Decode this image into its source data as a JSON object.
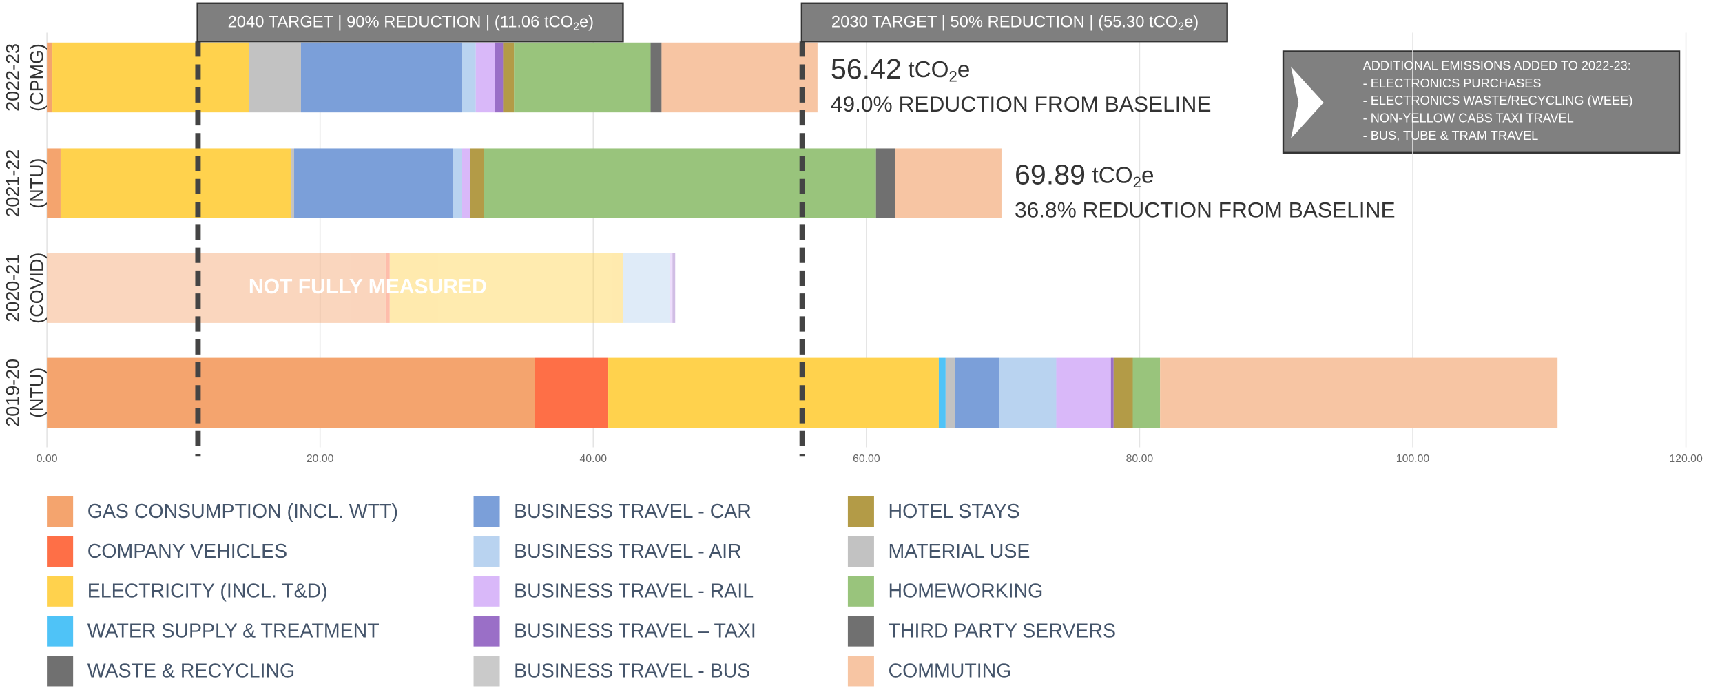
{
  "chart_data": {
    "type": "stacked_barh",
    "categories": [
      [
        "2022-23",
        "(CPMG)"
      ],
      [
        "2021-22",
        "(NTU)"
      ],
      [
        "2020-21",
        "(COVID)"
      ],
      [
        "2019-20",
        "(NTU)"
      ]
    ],
    "series": [
      {
        "name": "GAS CONSUMPTION (INCL. WTT)",
        "color": "#f4a46e",
        "values": [
          0.4,
          1.0,
          24.8,
          35.7
        ]
      },
      {
        "name": "COMPANY VEHICLES",
        "color": "#fe6f47",
        "values": [
          0,
          0,
          0.3,
          5.4
        ]
      },
      {
        "name": "ELECTRICITY (INCL. T&D)",
        "color": "#ffd24d",
        "values": [
          14.4,
          16.9,
          17.1,
          24.2
        ]
      },
      {
        "name": "WATER SUPPLY & TREATMENT",
        "color": "#4fc3f7",
        "values": [
          0,
          0,
          0,
          0.5
        ]
      },
      {
        "name": "WASTE & RECYCLING",
        "color": "#707070",
        "values": [
          0,
          0,
          0,
          0
        ]
      },
      {
        "name": "BUSINESS TRAVEL - CAR",
        "color": "#7b9fd9",
        "values": [
          11.8,
          11.6,
          0,
          3.2
        ]
      },
      {
        "name": "BUSINESS TRAVEL - AIR",
        "color": "#b9d3f0",
        "values": [
          1.0,
          0.7,
          3.4,
          4.2
        ]
      },
      {
        "name": "BUSINESS TRAVEL - RAIL",
        "color": "#d9b8f9",
        "values": [
          1.4,
          0.6,
          0.2,
          4.0
        ]
      },
      {
        "name": "BUSINESS TRAVEL – TAXI",
        "color": "#9a6fc7",
        "values": [
          0.6,
          0,
          0.2,
          0.2
        ]
      },
      {
        "name": "BUSINESS TRAVEL - BUS",
        "color": "#cacaca",
        "values": [
          0,
          0,
          0,
          0
        ]
      },
      {
        "name": "HOTEL STAYS",
        "color": "#b39b47",
        "values": [
          0.8,
          1.0,
          0,
          1.4
        ]
      },
      {
        "name": "MATERIAL USE",
        "color": "#c2c2c2",
        "values": [
          3.8,
          0.2,
          0,
          0.7
        ]
      },
      {
        "name": "HOMEWORKING",
        "color": "#99c47c",
        "values": [
          10.0,
          28.7,
          0,
          2.0
        ]
      },
      {
        "name": "THIRD PARTY SERVERS",
        "color": "#707070",
        "values": [
          0.8,
          1.4,
          0,
          0
        ]
      },
      {
        "name": "COMMUTING",
        "color": "#f7c5a3",
        "values": [
          11.42,
          7.79,
          0,
          29.1
        ]
      }
    ],
    "xlim": [
      0,
      120
    ],
    "xticks": [
      {
        "value": 0,
        "label": "0.00"
      },
      {
        "value": 20,
        "label": "20.00"
      },
      {
        "value": 40,
        "label": "40.00"
      },
      {
        "value": 60,
        "label": "60.00"
      },
      {
        "value": 80,
        "label": "80.00"
      },
      {
        "value": 100,
        "label": "100.00"
      },
      {
        "value": 120,
        "label": "120.00"
      }
    ],
    "grid": true,
    "targets": [
      {
        "value": 11.06,
        "text": "2040 TARGET | 90% REDUCTION | (11.06 tCO",
        "sub": "2",
        "tail": "e)"
      },
      {
        "value": 55.3,
        "text": "2030 TARGET | 50% REDUCTION | (55.30 tCO",
        "sub": "2",
        "tail": "e)"
      }
    ],
    "totals": [
      {
        "category": 0,
        "value": 56.42,
        "unit": "tCO",
        "sub": "2",
        "unit_end": "e",
        "note": "49.0% REDUCTION FROM BASELINE"
      },
      {
        "category": 1,
        "value": 69.89,
        "unit": "tCO",
        "sub": "2",
        "unit_end": "e",
        "note": "36.8% REDUCTION FROM BASELINE"
      }
    ],
    "not_measured": {
      "category": 2,
      "text": "NOT FULLY MEASURED"
    },
    "note": {
      "title": "ADDITIONAL EMISSIONS ADDED TO 2022-23:",
      "lines": [
        "- ELECTRONICS PURCHASES",
        "- ELECTRONICS WASTE/RECYCLING (WEEE)",
        "- NON-YELLOW CABS TAXI TRAVEL",
        "- BUS, TUBE & TRAM TRAVEL"
      ]
    }
  }
}
